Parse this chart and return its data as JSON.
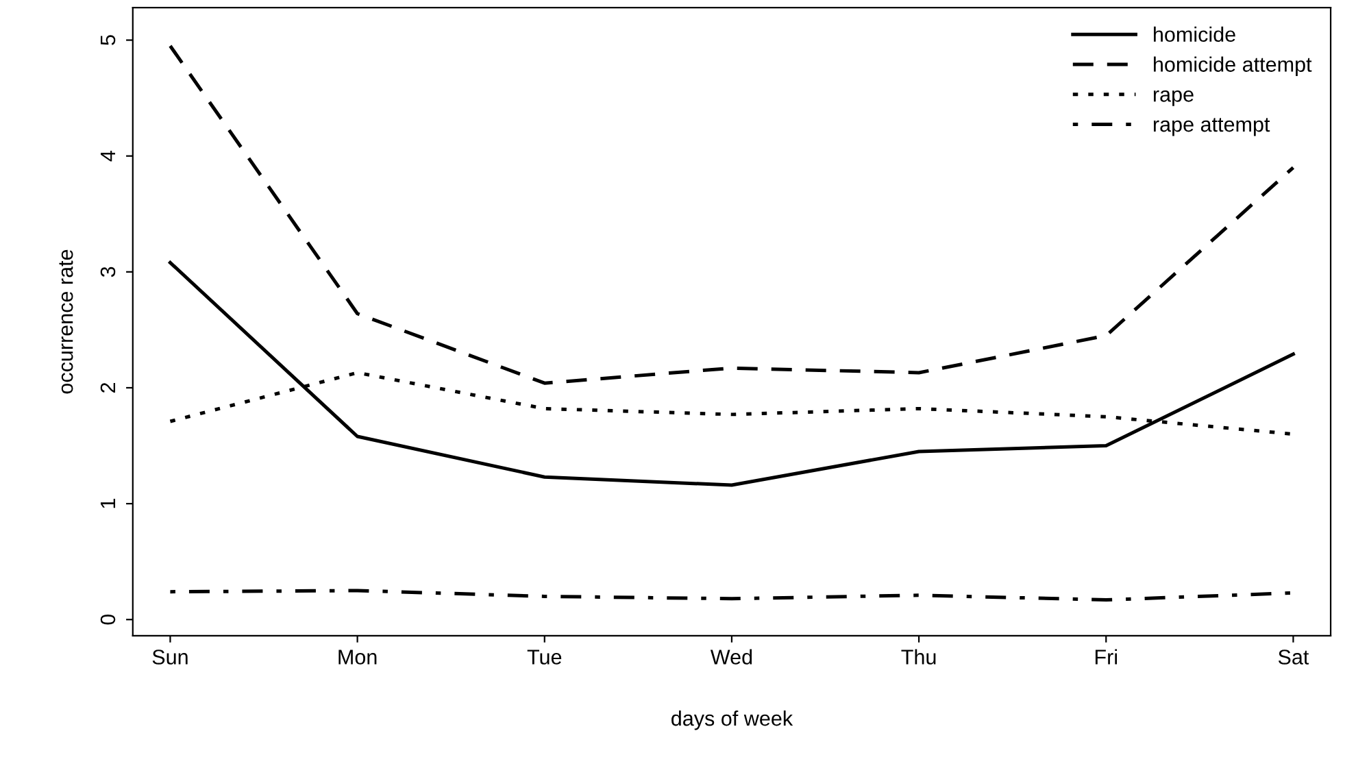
{
  "chart_data": {
    "type": "line",
    "xlabel": "days of week",
    "ylabel": "occurrence rate",
    "categories": [
      "Sun",
      "Mon",
      "Tue",
      "Wed",
      "Thu",
      "Fri",
      "Sat"
    ],
    "series": [
      {
        "name": "homicide",
        "color": "#000000",
        "line_style": "solid",
        "values": [
          3.08,
          1.58,
          1.23,
          1.16,
          1.45,
          1.5,
          2.29
        ]
      },
      {
        "name": "homicide attempt",
        "color": "#000000",
        "line_style": "dashed",
        "values": [
          4.95,
          2.64,
          2.04,
          2.17,
          2.13,
          2.45,
          3.9
        ]
      },
      {
        "name": "rape",
        "color": "#000000",
        "line_style": "dotted",
        "values": [
          1.71,
          2.13,
          1.82,
          1.77,
          1.82,
          1.75,
          1.6
        ]
      },
      {
        "name": "rape attempt",
        "color": "#000000",
        "line_style": "dashdot",
        "values": [
          0.24,
          0.25,
          0.2,
          0.18,
          0.21,
          0.17,
          0.23
        ]
      }
    ],
    "ylim": [
      -0.14,
      5.28
    ],
    "yticks": [
      0,
      1,
      2,
      3,
      4,
      5
    ],
    "grid": false,
    "legend": "top right",
    "marker": "none"
  }
}
